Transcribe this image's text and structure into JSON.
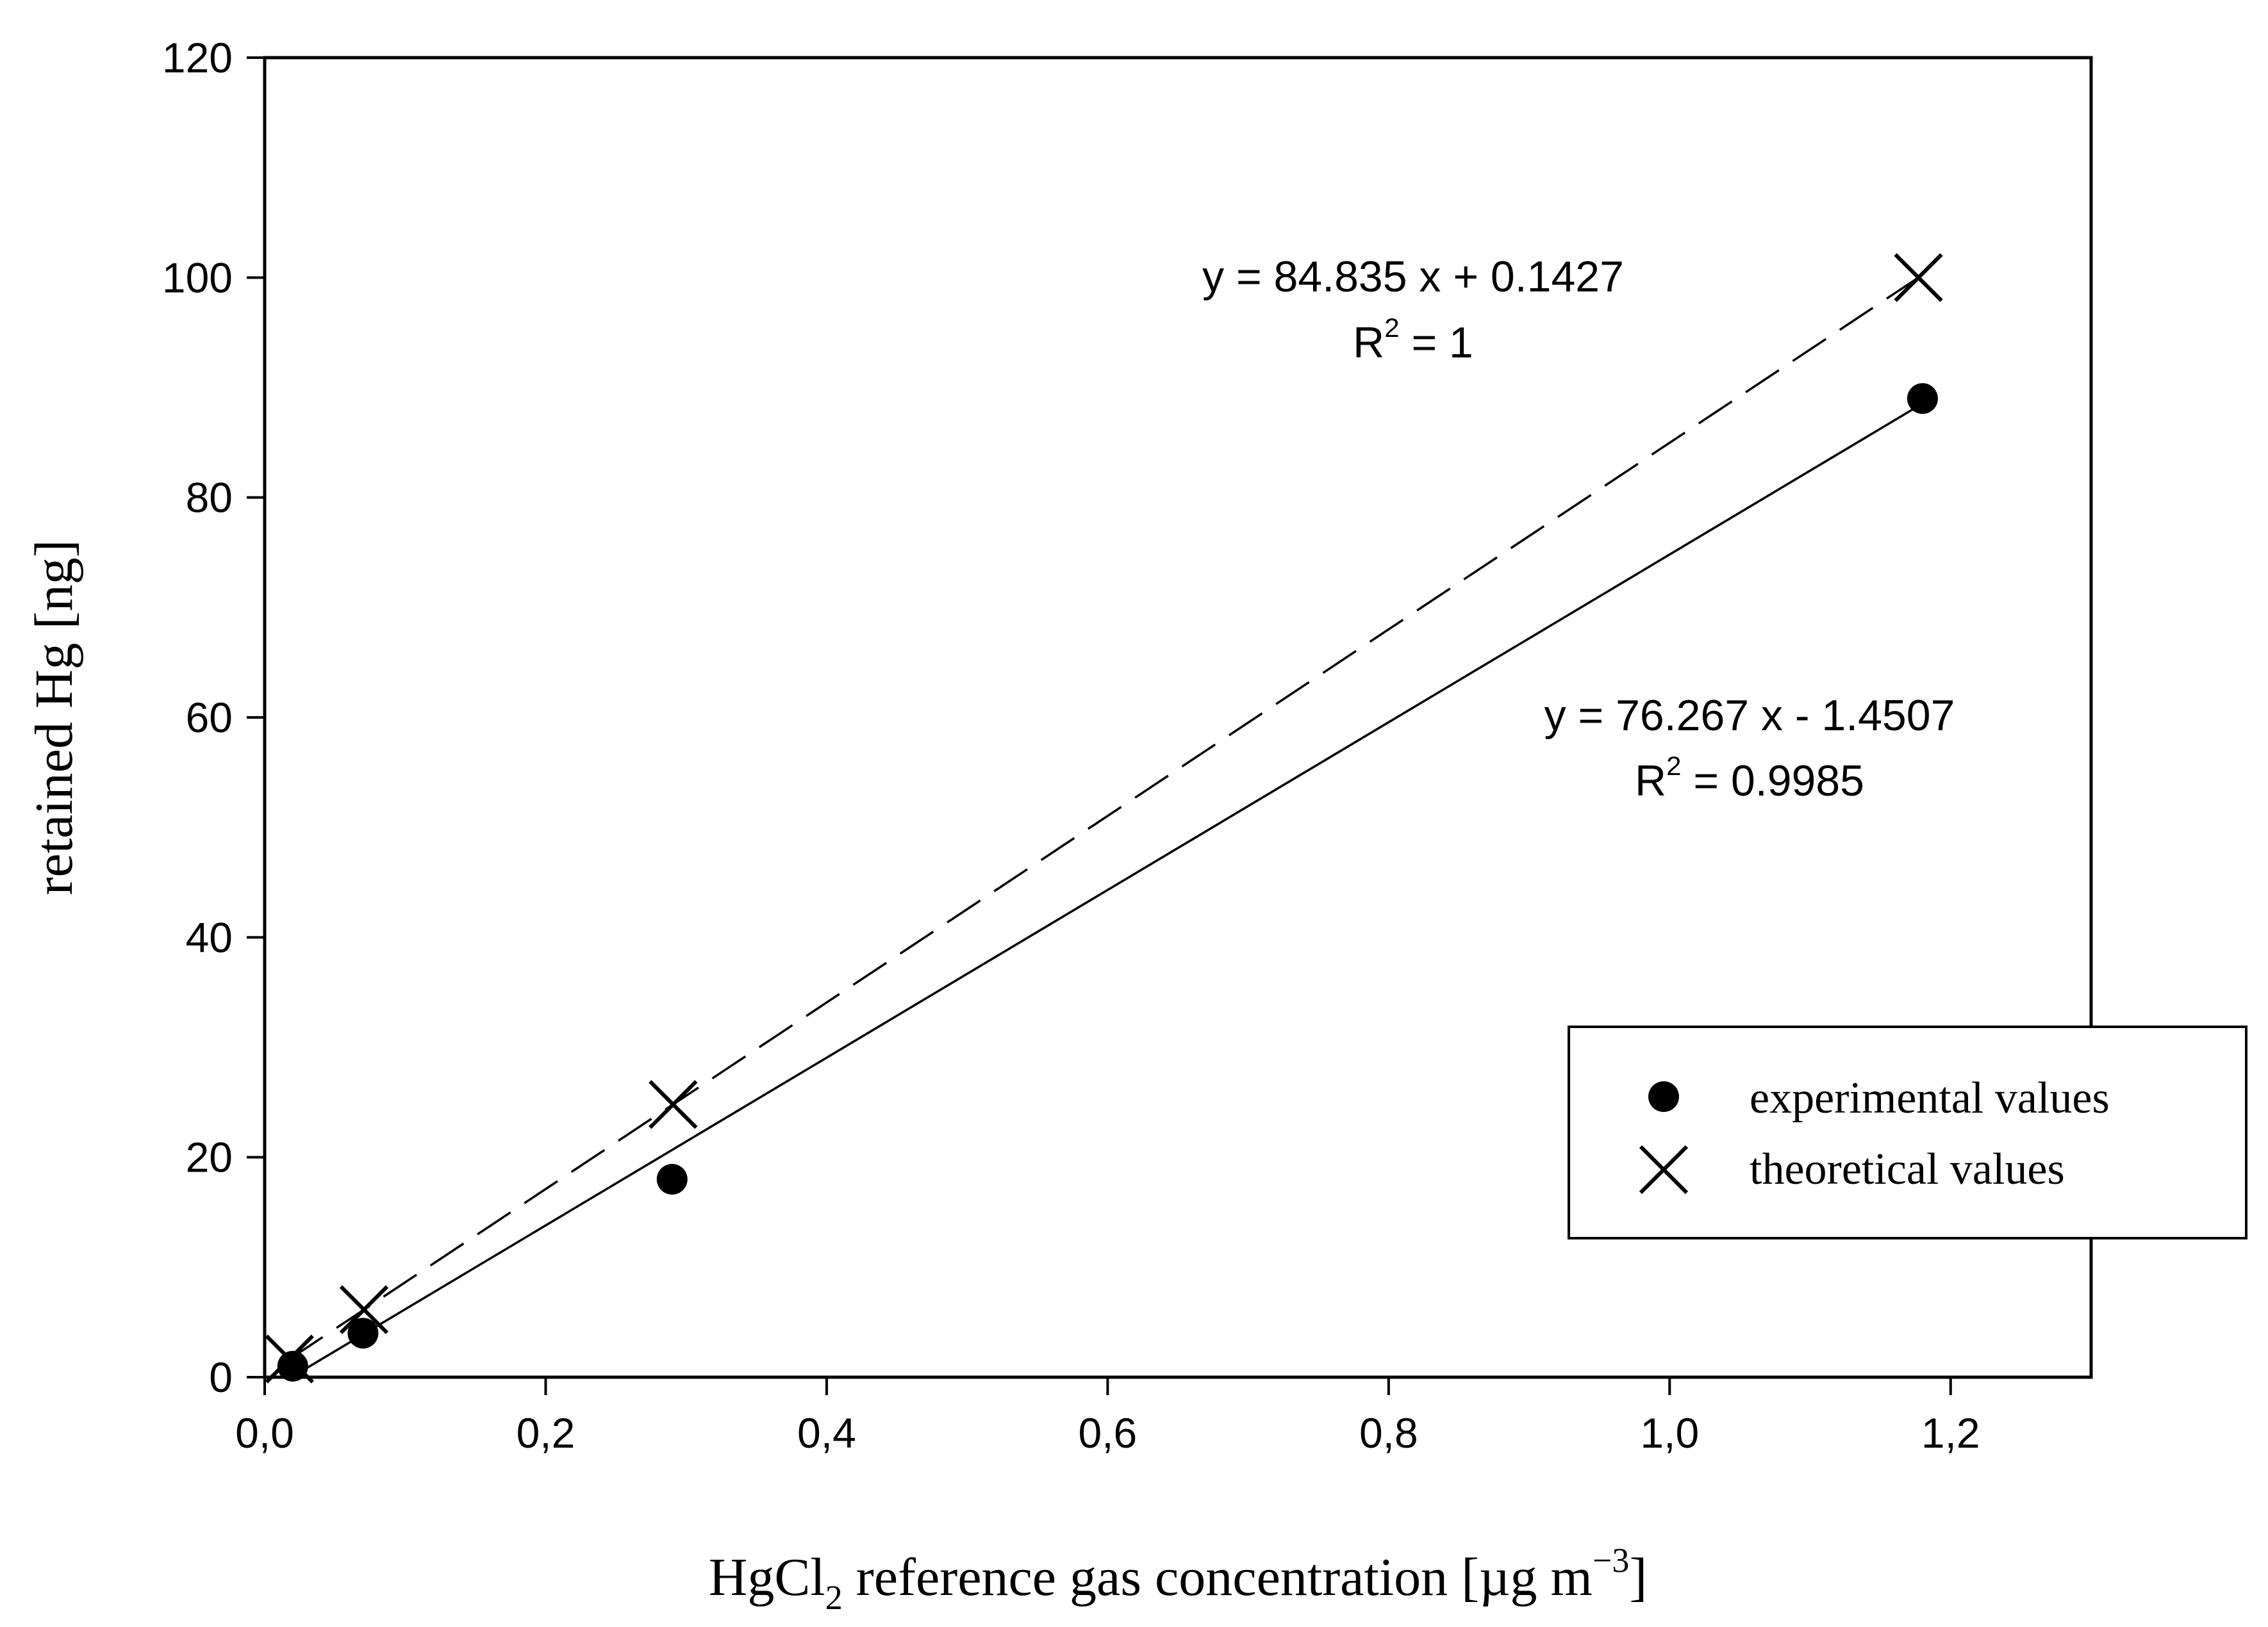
{
  "chart_data": {
    "type": "scatter",
    "title": "",
    "xlabel": {
      "pre": "HgCl",
      "sub": "2",
      "post": " reference gas concentration [µg m",
      "sup": "−3",
      "close": "]"
    },
    "ylabel": "retained Hg [ng]",
    "xlim": [
      0,
      1.3
    ],
    "ylim": [
      0,
      120
    ],
    "x_ticks": [
      0,
      0.2,
      0.4,
      0.6,
      0.8,
      1.0,
      1.2
    ],
    "x_tick_labels": [
      "0,0",
      "0,2",
      "0,4",
      "0,6",
      "0,8",
      "1,0",
      "1,2"
    ],
    "y_ticks": [
      0,
      20,
      40,
      60,
      80,
      100,
      120
    ],
    "y_tick_labels": [
      "0",
      "20",
      "40",
      "60",
      "80",
      "100",
      "120"
    ],
    "grid": false,
    "legend_position": "right",
    "series": [
      {
        "name": "experimental values",
        "marker": "filled-circle",
        "x": [
          0.02,
          0.07,
          0.29,
          1.18
        ],
        "y": [
          1.0,
          4.0,
          18.0,
          89.0
        ],
        "fit": {
          "slope": 76.267,
          "intercept": -1.4507,
          "style": "solid",
          "x_range": [
            0.02,
            1.18
          ]
        },
        "equation": "y = 76.267 x - 1.4507",
        "r2_label": "R",
        "r2_sup": "2",
        "r2_value": " = 0.9985"
      },
      {
        "name": "theoretical values",
        "marker": "x-cross",
        "x": [
          0.0177,
          0.0707,
          0.2907,
          1.1771
        ],
        "y": [
          1.65,
          6.14,
          24.8,
          100.0
        ],
        "fit": {
          "slope": 84.835,
          "intercept": 0.1427,
          "style": "dashed",
          "x_range": [
            0.0177,
            1.1771
          ]
        },
        "equation": "y = 84.835 x + 0.1427",
        "r2_label": "R",
        "r2_sup": "2",
        "r2_value": " = 1"
      }
    ],
    "colors": {
      "ink": "#000000",
      "background": "#ffffff"
    }
  }
}
